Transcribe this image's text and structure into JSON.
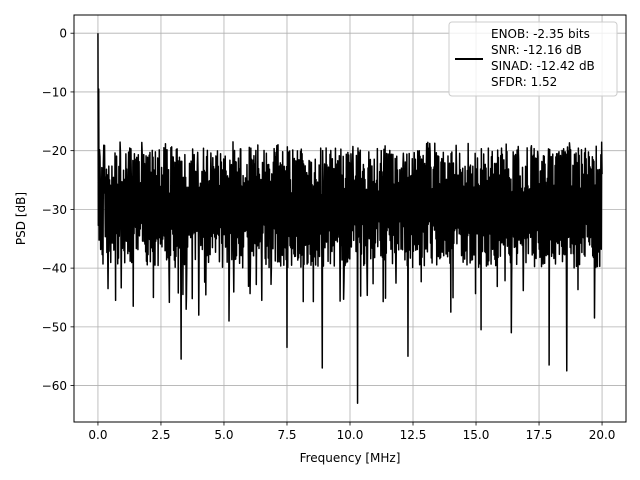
{
  "chart_data": {
    "type": "line",
    "title": "",
    "xlabel": "Frequency [MHz]",
    "ylabel": "PSD [dB]",
    "xlim": [
      -0.95,
      20.95
    ],
    "ylim": [
      -66.2,
      3.1
    ],
    "xticks": [
      0.0,
      2.5,
      5.0,
      7.5,
      10.0,
      12.5,
      15.0,
      17.5,
      20.0
    ],
    "xtick_labels": [
      "0.0",
      "2.5",
      "5.0",
      "7.5",
      "10.0",
      "12.5",
      "15.0",
      "17.5",
      "20.0"
    ],
    "yticks": [
      0,
      -10,
      -20,
      -30,
      -40,
      -50,
      -60
    ],
    "ytick_labels": [
      "0",
      "−10",
      "−20",
      "−30",
      "−40",
      "−50",
      "−60"
    ],
    "grid": true,
    "legend_placement": "upper right",
    "legend_lines": [
      "ENOB: -2.35 bits",
      "SNR: -12.16 dB",
      "SINAD: -12.42 dB",
      "SFDR: 1.52"
    ],
    "series": [
      {
        "color": "#000000",
        "x_range": [
          0.0,
          20.0
        ],
        "notable_points": [
          {
            "x": 0.0,
            "y": 0.0
          },
          {
            "x": 0.03,
            "y": -9.5
          },
          {
            "x": 0.08,
            "y": -21
          },
          {
            "x": 0.12,
            "y": -33
          },
          {
            "x": 0.4,
            "y": -43.5
          },
          {
            "x": 0.7,
            "y": -45.5
          },
          {
            "x": 1.4,
            "y": -46.5
          },
          {
            "x": 2.2,
            "y": -45
          },
          {
            "x": 3.3,
            "y": -55.5
          },
          {
            "x": 3.5,
            "y": -47
          },
          {
            "x": 4.0,
            "y": -48
          },
          {
            "x": 5.2,
            "y": -49
          },
          {
            "x": 6.5,
            "y": -45.5
          },
          {
            "x": 7.5,
            "y": -53.5
          },
          {
            "x": 8.9,
            "y": -57
          },
          {
            "x": 10.3,
            "y": -63
          },
          {
            "x": 12.3,
            "y": -55
          },
          {
            "x": 14.0,
            "y": -47.5
          },
          {
            "x": 15.2,
            "y": -50.5
          },
          {
            "x": 16.4,
            "y": -51
          },
          {
            "x": 17.9,
            "y": -56.5
          },
          {
            "x": 18.6,
            "y": -57.5
          },
          {
            "x": 19.7,
            "y": -48.5
          },
          {
            "x": 20.0,
            "y": -24
          }
        ],
        "noise_band": {
          "upper": -19.5,
          "lower": -38.0,
          "typical_min": -40.0,
          "typical_max": -18.5
        }
      }
    ]
  }
}
